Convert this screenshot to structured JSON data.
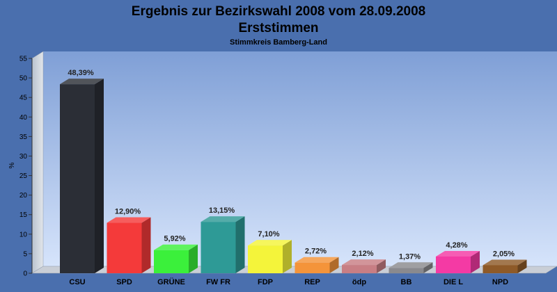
{
  "chart_data": {
    "type": "bar",
    "title": "Ergebnis zur Bezirkswahl 2008 vom 28.09.2008",
    "subtitle_main": "Erststimmen",
    "subtitle_small": "Stimmkreis Bamberg-Land",
    "ylabel": "%",
    "xlabel": "",
    "ylim": [
      0,
      55
    ],
    "yticks": [
      "0",
      "5",
      "10",
      "15",
      "20",
      "25",
      "30",
      "35",
      "40",
      "45",
      "50",
      "55"
    ],
    "categories": [
      "CSU",
      "SPD",
      "GRÜNE",
      "FW FR",
      "FDP",
      "REP",
      "ödp",
      "BB",
      "DIE L",
      "NPD"
    ],
    "values": [
      48.39,
      12.9,
      5.92,
      13.15,
      7.1,
      2.72,
      2.12,
      1.37,
      4.28,
      2.05
    ],
    "value_labels": [
      "48,39%",
      "12,90%",
      "5,92%",
      "13,15%",
      "7,10%",
      "2,72%",
      "2,12%",
      "1,37%",
      "4,28%",
      "2,05%"
    ],
    "colors": [
      "#2b2e36",
      "#f43a3a",
      "#3bf03b",
      "#2e9a96",
      "#f4f43a",
      "#f4943a",
      "#c87e84",
      "#8a8a8e",
      "#f43aa4",
      "#8e5a28"
    ],
    "grid": false,
    "legend": "none"
  }
}
